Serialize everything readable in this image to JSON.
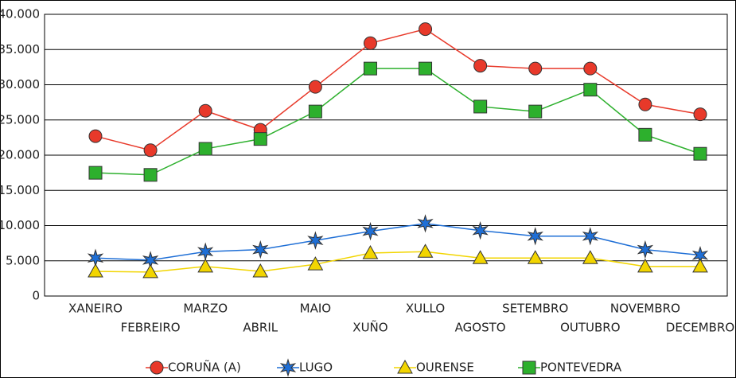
{
  "chart_data": {
    "type": "line",
    "categories": [
      "XANEIRO",
      "FEBREIRO",
      "MARZO",
      "ABRIL",
      "MAIO",
      "XUÑO",
      "XULLO",
      "AGOSTO",
      "SETEMBRO",
      "OUTUBRO",
      "NOVEMBRO",
      "DECEMBRO"
    ],
    "series": [
      {
        "name": "CORUÑA (A)",
        "color": "#e8392a",
        "marker": "circle",
        "values": [
          22700,
          20700,
          26300,
          23600,
          29700,
          35900,
          37900,
          32700,
          32300,
          32300,
          27200,
          25800
        ]
      },
      {
        "name": "LUGO",
        "color": "#1f6fd6",
        "marker": "star",
        "values": [
          5400,
          5100,
          6300,
          6600,
          7900,
          9200,
          10300,
          9300,
          8500,
          8500,
          6600,
          5800
        ]
      },
      {
        "name": "OURENSE",
        "color": "#f2d500",
        "marker": "triangle",
        "values": [
          3500,
          3400,
          4200,
          3500,
          4500,
          6100,
          6300,
          5400,
          5400,
          5400,
          4200,
          4200
        ]
      },
      {
        "name": "PONTEVEDRA",
        "color": "#2db02d",
        "marker": "square",
        "values": [
          17500,
          17200,
          20900,
          22300,
          26200,
          32300,
          32300,
          26900,
          26200,
          29300,
          22900,
          20200
        ]
      }
    ],
    "ylim": [
      0,
      40000
    ],
    "yticks": [
      0,
      {
        "value": 5000,
        "label": "5.000"
      },
      {
        "value": 10000,
        "label": "10.000"
      },
      {
        "value": 15000,
        "label": "15.000"
      },
      {
        "value": 20000,
        "label": "20.000"
      },
      {
        "value": 25000,
        "label": "25.000"
      },
      {
        "value": 30000,
        "label": "30.000"
      },
      {
        "value": 35000,
        "label": "35.000"
      },
      {
        "value": 40000,
        "label": "40.000"
      }
    ],
    "grid": true,
    "legend": "bottom"
  }
}
